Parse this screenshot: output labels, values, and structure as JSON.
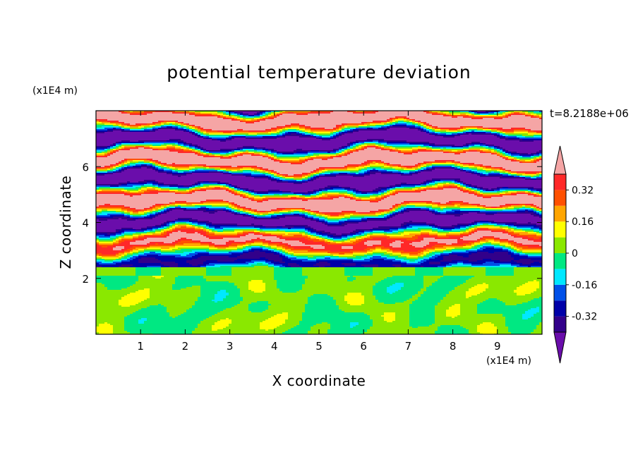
{
  "chart_data": {
    "type": "heatmap",
    "title": "potential temperature deviation",
    "xlabel": "X coordinate",
    "ylabel": "Z coordinate",
    "x_unit": "(x1E4 m)",
    "y_unit": "(x1E4 m)",
    "time_label": "t=8.2188e+06",
    "xlim": [
      0,
      10
    ],
    "ylim": [
      0,
      8
    ],
    "x_ticks": [
      1,
      2,
      3,
      4,
      5,
      6,
      7,
      8,
      9
    ],
    "y_ticks": [
      2,
      4,
      6
    ],
    "grid": false,
    "colorbar": {
      "levels": [
        -0.48,
        -0.4,
        -0.32,
        -0.24,
        -0.16,
        -0.08,
        0,
        0.08,
        0.16,
        0.24,
        0.32,
        0.4,
        0.48
      ],
      "colors": [
        "#6a0dab",
        "#32008a",
        "#0000a8",
        "#0050e8",
        "#00e8ff",
        "#00e882",
        "#8ae800",
        "#ffff00",
        "#ffa500",
        "#ff5000",
        "#ff2828",
        "#f5a5a5"
      ],
      "labels": [
        "0.32",
        "0.16",
        "0",
        "-0.16",
        "-0.32"
      ],
      "label_values": [
        0.32,
        0.16,
        0,
        -0.16,
        -0.32
      ],
      "extend": "both",
      "location": "right"
    },
    "layers": [
      {
        "z_min": 0,
        "z_max": 2.1,
        "description_value": "near 0 (mixed -0.08 to 0.08)"
      },
      {
        "z_min": 2.1,
        "z_max": 2.4,
        "description_value": "near 0"
      },
      {
        "z_min": 2.4,
        "z_max": 8,
        "description_value": "banded -0.48 to 0.48"
      }
    ]
  }
}
